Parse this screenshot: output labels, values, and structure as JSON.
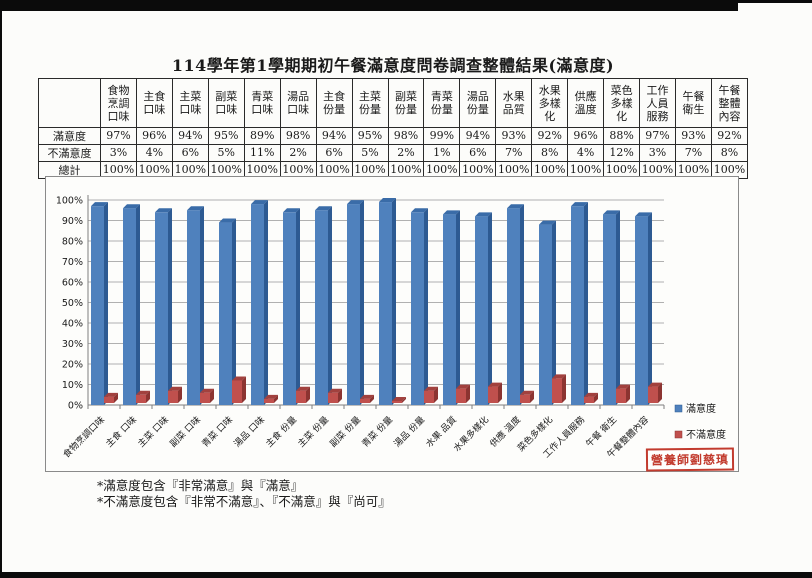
{
  "page": {
    "title": "114學年第1學期期初午餐滿意度問卷調查整體結果(滿意度)",
    "notes": [
      "*滿意度包含『非常滿意』與『滿意』",
      "*不滿意度包含『非常不滿意』、『不滿意』與『尚可』"
    ],
    "stamp": "營養師劉慈瑱"
  },
  "table": {
    "corner_label": "",
    "columns": [
      "食物\n烹調\n口味",
      "主食\n口味",
      "主菜\n口味",
      "副菜\n口味",
      "青菜\n口味",
      "湯品\n口味",
      "主食\n份量",
      "主菜\n份量",
      "副菜\n份量",
      "青菜\n份量",
      "湯品\n份量",
      "水果\n品質",
      "水果\n多樣\n化",
      "供應\n溫度",
      "菜色\n多樣\n化",
      "工作\n人員\n服務",
      "午餐\n衛生",
      "午餐\n整體\n內容"
    ],
    "rows": [
      {
        "label": "滿意度",
        "values": [
          "97%",
          "96%",
          "94%",
          "95%",
          "89%",
          "98%",
          "94%",
          "95%",
          "98%",
          "99%",
          "94%",
          "93%",
          "92%",
          "96%",
          "88%",
          "97%",
          "93%",
          "92%"
        ]
      },
      {
        "label": "不滿意度",
        "values": [
          "3%",
          "4%",
          "6%",
          "5%",
          "11%",
          "2%",
          "6%",
          "5%",
          "2%",
          "1%",
          "6%",
          "7%",
          "8%",
          "4%",
          "12%",
          "3%",
          "7%",
          "8%"
        ]
      },
      {
        "label": "總計",
        "values": [
          "100%",
          "100%",
          "100%",
          "100%",
          "100%",
          "100%",
          "100%",
          "100%",
          "100%",
          "100%",
          "100%",
          "100%",
          "100%",
          "100%",
          "100%",
          "100%",
          "100%",
          "100%"
        ]
      }
    ]
  },
  "chart_data": {
    "type": "bar",
    "style": "3d-clustered-column",
    "title": "",
    "xlabel": "",
    "ylabel": "",
    "ylim": [
      0,
      100
    ],
    "ytick_step": 10,
    "ytick_format": "percent",
    "grid": true,
    "legend_position": "right",
    "categories": [
      "食物烹調口味",
      "主食 口味",
      "主菜 口味",
      "副菜 口味",
      "青菜 口味",
      "湯品 口味",
      "主食 份量",
      "主菜 份量",
      "副菜 份量",
      "青菜 份量",
      "湯品 份量",
      "水果 品質",
      "水果多樣化",
      "供應 溫度",
      "菜色多樣化",
      "工作人員服務",
      "午餐 衛生",
      "午餐整體內容"
    ],
    "series": [
      {
        "name": "滿意度",
        "color": "#4f81bd",
        "side_color": "#2d5a92",
        "top_color": "#3a6ca8",
        "values": [
          97,
          96,
          94,
          95,
          89,
          98,
          94,
          95,
          98,
          99,
          94,
          93,
          92,
          96,
          88,
          97,
          93,
          92
        ]
      },
      {
        "name": "不滿意度",
        "color": "#c0504d",
        "side_color": "#8c3431",
        "top_color": "#a2413e",
        "values": [
          3,
          4,
          6,
          5,
          11,
          2,
          6,
          5,
          2,
          1,
          6,
          7,
          8,
          4,
          12,
          3,
          7,
          8
        ]
      }
    ],
    "axis_color": "#7f7f7f",
    "grid_color": "#b0b0b0",
    "label_color": "#1a1a1a"
  }
}
